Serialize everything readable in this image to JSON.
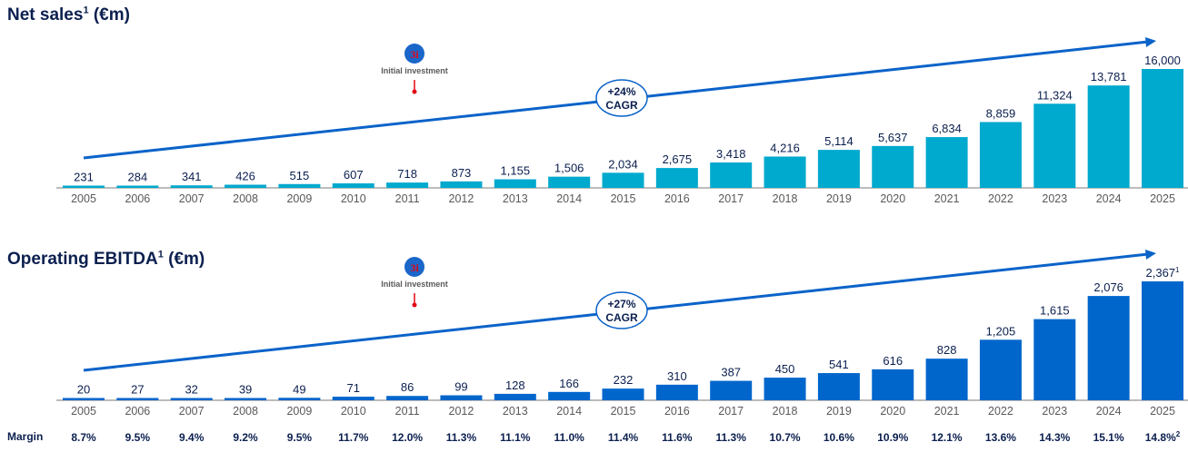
{
  "colors": {
    "net_sales_bar": "#00a9ce",
    "ebitda_bar": "#0066cc",
    "trend_arrow": "#0a63c9",
    "title_text": "#0b1f4f",
    "axis_text": "#595959",
    "value_text": "#0b1f4f",
    "marker_red": "#e30613"
  },
  "chart_data": [
    {
      "type": "bar",
      "title": "Net sales",
      "title_footnote": "1",
      "title_unit": "(€m)",
      "categories": [
        "2005",
        "2006",
        "2007",
        "2008",
        "2009",
        "2010",
        "2011",
        "2012",
        "2013",
        "2014",
        "2015",
        "2016",
        "2017",
        "2018",
        "2019",
        "2020",
        "2021",
        "2022",
        "2023",
        "2024",
        "2025"
      ],
      "values": [
        231,
        284,
        341,
        426,
        515,
        607,
        718,
        873,
        1155,
        1506,
        2034,
        2675,
        3418,
        4216,
        5114,
        5637,
        6834,
        8859,
        11324,
        13781,
        16000
      ],
      "value_labels": [
        "231",
        "284",
        "341",
        "426",
        "515",
        "607",
        "718",
        "873",
        "1,155",
        "1,506",
        "2,034",
        "2,675",
        "3,418",
        "4,216",
        "5,114",
        "5,637",
        "6,834",
        "8,859",
        "11,324",
        "13,781",
        "16,000"
      ],
      "value_label_footnotes": {},
      "ylim": [
        0,
        16000
      ],
      "xlabel": "",
      "ylabel": "",
      "grid": false,
      "annotations": {
        "cagr_line1": "+24%",
        "cagr_line2": "CAGR",
        "investment_label": "Initial investment",
        "investment_logo": "3i",
        "investment_year": "2011"
      }
    },
    {
      "type": "bar",
      "title": "Operating EBITDA",
      "title_footnote": "1",
      "title_unit": "(€m)",
      "categories": [
        "2005",
        "2006",
        "2007",
        "2008",
        "2009",
        "2010",
        "2011",
        "2012",
        "2013",
        "2014",
        "2015",
        "2016",
        "2017",
        "2018",
        "2019",
        "2020",
        "2021",
        "2022",
        "2023",
        "2024",
        "2025"
      ],
      "values": [
        20,
        27,
        32,
        39,
        49,
        71,
        86,
        99,
        128,
        166,
        232,
        310,
        387,
        450,
        541,
        616,
        828,
        1205,
        1615,
        2076,
        2367
      ],
      "value_labels": [
        "20",
        "27",
        "32",
        "39",
        "49",
        "71",
        "86",
        "99",
        "128",
        "166",
        "232",
        "310",
        "387",
        "450",
        "541",
        "616",
        "828",
        "1,205",
        "1,615",
        "2,076",
        "2,367"
      ],
      "value_label_footnotes": {
        "20": "1"
      },
      "ylim": [
        0,
        2367
      ],
      "xlabel": "",
      "ylabel": "",
      "grid": false,
      "annotations": {
        "cagr_line1": "+27%",
        "cagr_line2": "CAGR",
        "investment_label": "Initial investment",
        "investment_logo": "3i",
        "investment_year": "2011"
      },
      "margin_row": {
        "label": "Margin",
        "values": [
          "8.7%",
          "9.5%",
          "9.4%",
          "9.2%",
          "9.5%",
          "11.7%",
          "12.0%",
          "11.3%",
          "11.1%",
          "11.0%",
          "11.4%",
          "11.6%",
          "11.3%",
          "10.7%",
          "10.6%",
          "10.9%",
          "12.1%",
          "13.6%",
          "14.3%",
          "15.1%",
          "14.8%"
        ],
        "footnotes": {
          "20": "2"
        }
      }
    }
  ]
}
